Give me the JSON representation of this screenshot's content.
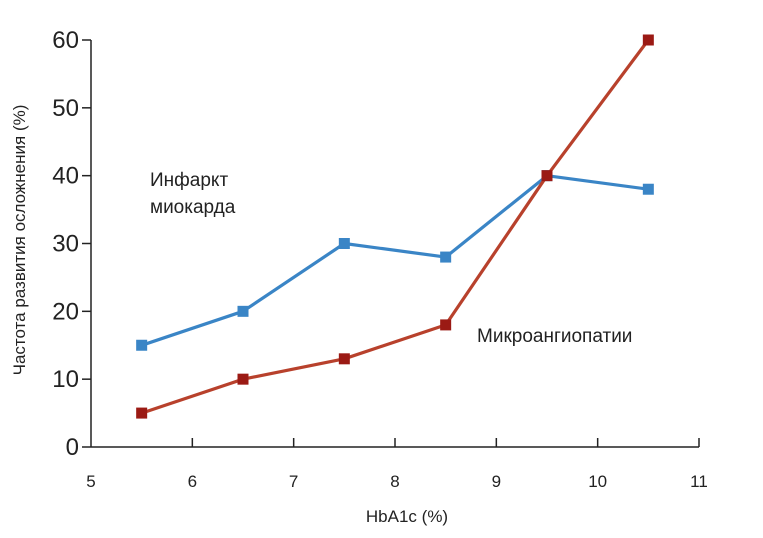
{
  "chart_data": {
    "type": "line",
    "x": [
      5.5,
      6.5,
      7.5,
      8.5,
      9.5,
      10.5
    ],
    "series": [
      {
        "values": [
          15,
          20,
          30,
          28,
          40,
          38
        ],
        "color": "#3a85c6",
        "marker": "square"
      },
      {
        "values": [
          5,
          10,
          13,
          18,
          40,
          60
        ],
        "color": "#b8412c",
        "marker_color": "#9b1a14",
        "marker": "square"
      }
    ],
    "xlabel": "HbA1c (%)",
    "ylabel": "Частота развития осложнения (%)",
    "xlim": [
      5,
      11
    ],
    "ylim": [
      0,
      60
    ],
    "xticks": [
      5,
      6,
      7,
      8,
      9,
      10,
      11
    ],
    "yticks": [
      0,
      10,
      20,
      30,
      40,
      50,
      60
    ],
    "grid": false,
    "annotations": [
      {
        "lines": [
          "Инфаркт",
          "миокарда"
        ]
      },
      {
        "lines": [
          "Микроангиопатии"
        ]
      }
    ]
  }
}
